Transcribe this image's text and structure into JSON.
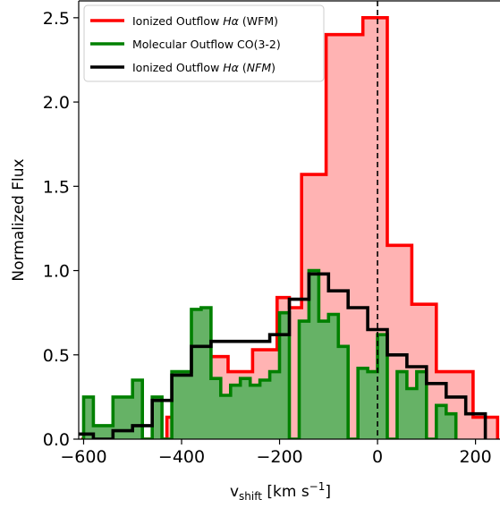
{
  "chart_data": {
    "type": "histogram-step",
    "xlabel": {
      "base": "v",
      "sub": "shift",
      "units_pre": " [km s",
      "sup": "−1",
      "units_post": "]"
    },
    "ylabel": "Normalized Flux",
    "xlim": [
      -610,
      250
    ],
    "ylim": [
      0,
      2.6
    ],
    "xticks": [
      -600,
      -400,
      -200,
      0,
      200
    ],
    "xtick_labels": [
      "−600",
      "−400",
      "−200",
      "0",
      "200"
    ],
    "yticks": [
      0.0,
      0.5,
      1.0,
      1.5,
      2.0,
      2.5
    ],
    "ytick_labels": [
      "0.0",
      "0.5",
      "1.0",
      "1.5",
      "2.0",
      "2.5"
    ],
    "vline": {
      "x": 0,
      "style": "dashed",
      "color": "#000000"
    },
    "legend_position": "top-left",
    "series": [
      {
        "name": "Ionized Outflow Hα (WFM)",
        "legend": {
          "pre": "Ionized Outflow ",
          "italic": "Hα",
          "post": " (WFM)"
        },
        "color": "#ff0000",
        "fill": "#ffb3b3",
        "edges": [
          -605,
          -580,
          -555,
          -530,
          -505,
          -480,
          -455,
          -430,
          -405,
          -380,
          -355,
          -330,
          -305,
          -280,
          -255,
          -230,
          -205,
          -180,
          -155,
          -130,
          -105,
          -80,
          -55,
          -30,
          -5,
          20,
          45,
          70,
          95,
          120,
          145,
          170,
          195,
          220,
          245
        ],
        "values": [
          0,
          0,
          0,
          0,
          0,
          0,
          0,
          0.13,
          0.23,
          0.4,
          0.49,
          0.49,
          0.4,
          0.4,
          0.53,
          0.53,
          0.84,
          0.78,
          1.57,
          1.57,
          2.4,
          2.4,
          2.4,
          2.5,
          2.5,
          1.15,
          1.15,
          0.8,
          0.8,
          0.4,
          0.4,
          0.4,
          0.13,
          0.13
        ]
      },
      {
        "name": "Molecular Outflow CO(3-2)",
        "legend": {
          "pre": "Molecular Outflow CO(3-2)",
          "italic": "",
          "post": ""
        },
        "color": "#008000",
        "fill": "#66b266",
        "edges": [
          -600,
          -580,
          -560,
          -540,
          -520,
          -500,
          -480,
          -460,
          -440,
          -420,
          -400,
          -380,
          -360,
          -340,
          -320,
          -300,
          -280,
          -260,
          -240,
          -220,
          -200,
          -180,
          -160,
          -140,
          -120,
          -100,
          -80,
          -60,
          -40,
          -20,
          0,
          20,
          40,
          60,
          80,
          100,
          120,
          140,
          160
        ],
        "values": [
          0.25,
          0.08,
          0.08,
          0.25,
          0.25,
          0.35,
          0.0,
          0.25,
          0.0,
          0.4,
          0.4,
          0.77,
          0.78,
          0.36,
          0.26,
          0.32,
          0.36,
          0.32,
          0.35,
          0.4,
          0.75,
          0.0,
          0.7,
          1.0,
          0.7,
          0.74,
          0.55,
          0.0,
          0.42,
          0.4,
          0.62,
          0.0,
          0.4,
          0.3,
          0.4,
          0.0,
          0.2,
          0.15
        ]
      },
      {
        "name": "Ionized Outflow Hα (NFM)",
        "legend": {
          "pre": "Ionized Outflow ",
          "italic": "Hα",
          "post": " (NFM)"
        },
        "color": "#000000",
        "fill": "none",
        "edges": [
          -620,
          -580,
          -540,
          -500,
          -460,
          -420,
          -380,
          -340,
          -300,
          -260,
          -220,
          -180,
          -140,
          -100,
          -60,
          -20,
          20,
          60,
          100,
          140,
          180,
          220
        ],
        "values": [
          0.03,
          0.0,
          0.05,
          0.08,
          0.23,
          0.38,
          0.55,
          0.58,
          0.58,
          0.58,
          0.62,
          0.83,
          0.98,
          0.88,
          0.78,
          0.65,
          0.5,
          0.43,
          0.33,
          0.25,
          0.15
        ]
      }
    ]
  }
}
